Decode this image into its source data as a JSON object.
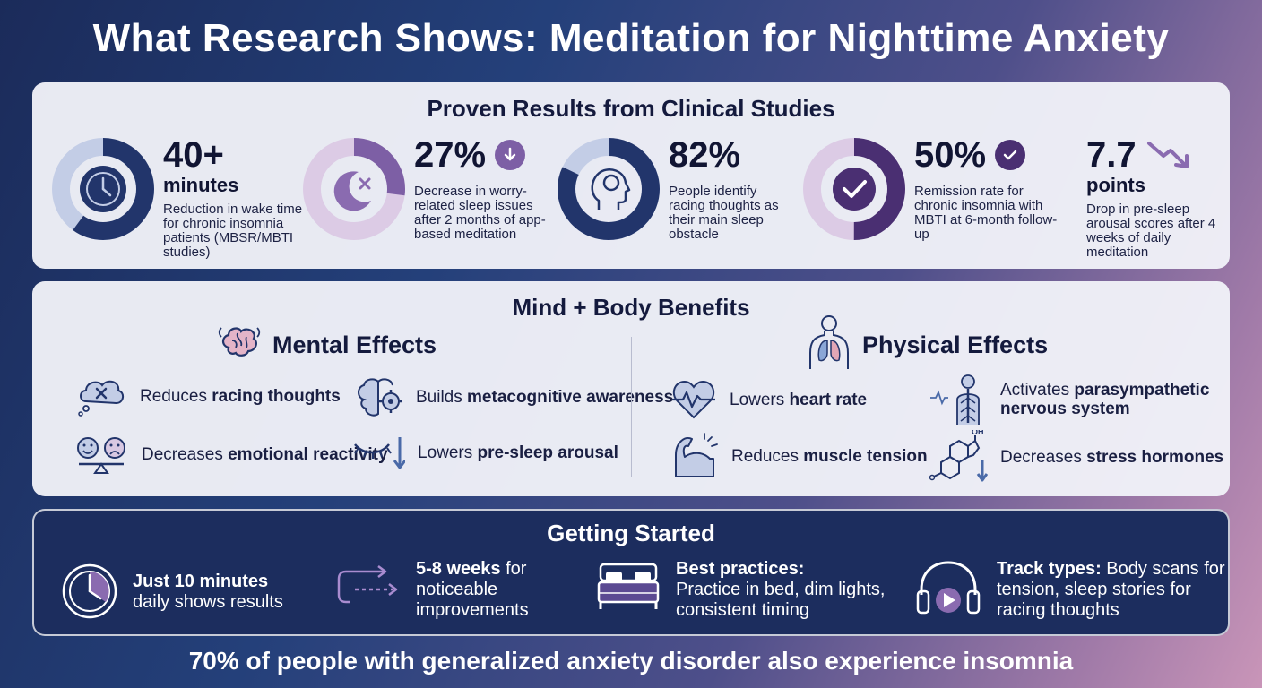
{
  "title": "What Research Shows: Meditation for Nighttime Anxiety",
  "results": {
    "heading": "Proven Results from Clinical Studies",
    "stats": [
      {
        "value": "40+",
        "unit": "minutes",
        "desc": "Reduction in wake time for chronic insomnia patients (MBSR/MBTI studies)",
        "fraction": 0.6,
        "icon": "clock-icon"
      },
      {
        "value": "27%",
        "desc": "Decrease in worry-related sleep issues after 2 months of app-based meditation",
        "fraction": 0.27,
        "icon": "moon-x-icon",
        "badge": "arrow-down-icon"
      },
      {
        "value": "82%",
        "desc": "People identify racing thoughts as their main sleep obstacle",
        "fraction": 0.82,
        "icon": "head-brain-icon"
      },
      {
        "value": "50%",
        "desc": "Remission rate for chronic insomnia with MBTI at 6-month follow-up",
        "fraction": 0.5,
        "icon": "check-circle-icon",
        "badge": "check-icon"
      },
      {
        "value": "7.7",
        "unit": "points",
        "desc": "Drop in pre-sleep arousal scores after 4 weeks of daily meditation",
        "icon": "trend-down-icon"
      }
    ]
  },
  "benefits": {
    "heading": "Mind + Body Benefits",
    "mental": {
      "title": "Mental Effects",
      "items": [
        {
          "pre": "Reduces ",
          "bold": "racing thoughts",
          "post": ""
        },
        {
          "pre": "Builds ",
          "bold": "metacognitive awareness",
          "post": ""
        },
        {
          "pre": "Decreases ",
          "bold": "emotional reactivity",
          "post": ""
        },
        {
          "pre": "Lowers ",
          "bold": "pre-sleep arousal",
          "post": ""
        }
      ]
    },
    "physical": {
      "title": "Physical Effects",
      "items": [
        {
          "pre": "Lowers ",
          "bold": "heart rate",
          "post": ""
        },
        {
          "pre": "Activates ",
          "bold": "parasympathetic nervous system",
          "post": ""
        },
        {
          "pre": "Reduces ",
          "bold": "muscle tension",
          "post": ""
        },
        {
          "pre": "Decreases ",
          "bold": "stress hormones",
          "post": ""
        }
      ],
      "hormone_label": "OH"
    }
  },
  "start": {
    "heading": "Getting Started",
    "items": [
      {
        "bold": "Just 10 minutes",
        "rest": "daily shows results"
      },
      {
        "bold": "5-8 weeks",
        "rest": " for noticeable improvements"
      },
      {
        "bold": "Best practices:",
        "rest": "Practice in bed, dim lights, consistent timing"
      },
      {
        "bold": "Track types:",
        "rest": " Body scans for tension, sleep stories for racing thoughts"
      }
    ]
  },
  "footer": "70% of people with generalized anxiety disorder also experience insomnia",
  "colors": {
    "navy": "#22356b",
    "purple": "#5b3f86",
    "light_purple": "#c9b4d8",
    "light_blue": "#c3cde6",
    "lavender": "#8a6bb0"
  }
}
